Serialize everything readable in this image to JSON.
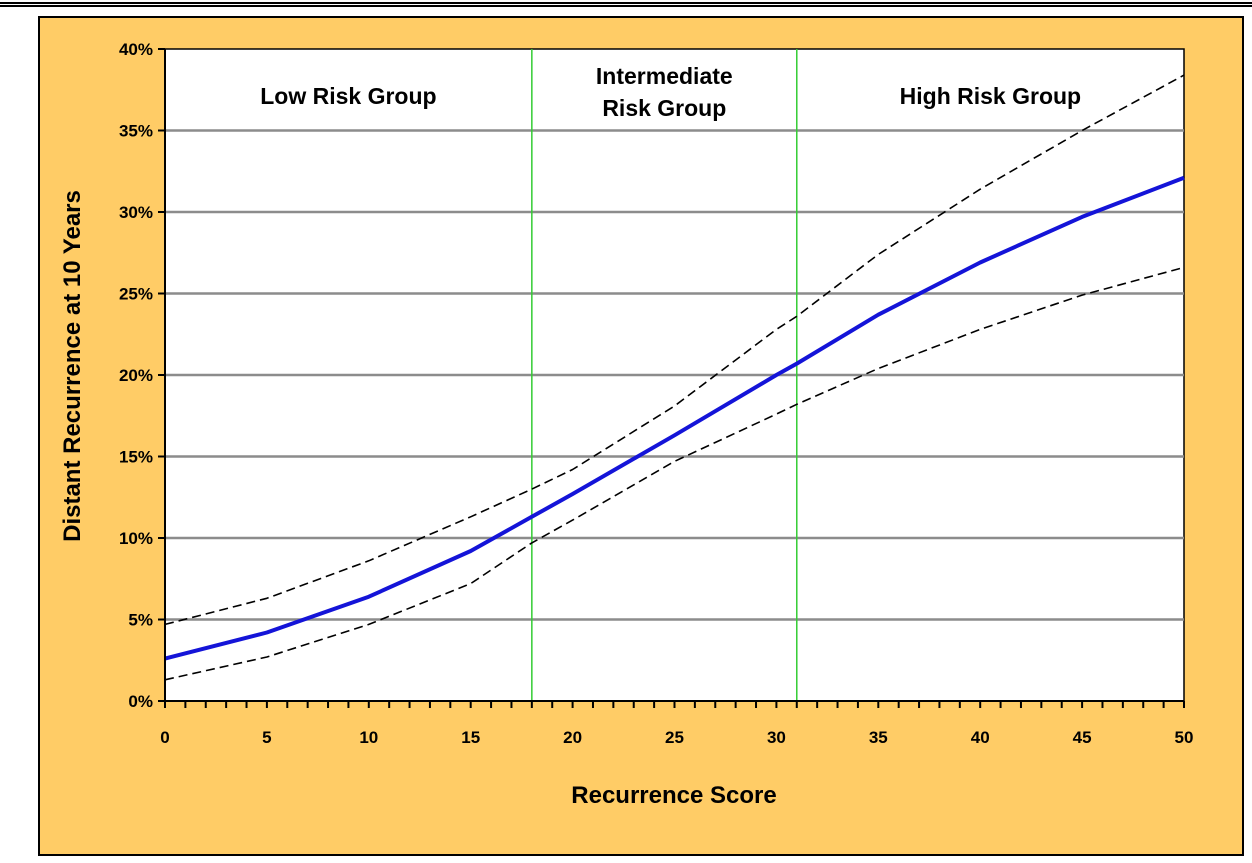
{
  "chart_data": {
    "type": "line",
    "title": "",
    "xlabel": "Recurrence Score",
    "ylabel": "Distant Recurrence at 10 Years",
    "xlim": [
      0,
      50
    ],
    "ylim": [
      0,
      40
    ],
    "x_ticks": [
      "0",
      "5",
      "10",
      "15",
      "20",
      "25",
      "30",
      "35",
      "40",
      "45",
      "50"
    ],
    "y_ticks": [
      "0%",
      "5%",
      "10%",
      "15%",
      "20%",
      "25%",
      "30%",
      "35%",
      "40%"
    ],
    "grid": "horizontal",
    "risk_cutoffs": [
      18,
      31
    ],
    "risk_groups": [
      {
        "lines": [
          "Low Risk Group"
        ]
      },
      {
        "lines": [
          "Intermediate",
          "Risk Group"
        ]
      },
      {
        "lines": [
          "High Risk Group"
        ]
      }
    ],
    "x": [
      0,
      5,
      10,
      15,
      18,
      20,
      25,
      30,
      31,
      35,
      40,
      45,
      50
    ],
    "series": [
      {
        "values": [
          2.6,
          4.2,
          6.4,
          9.2,
          11.3,
          12.7,
          16.3,
          20.0,
          20.7,
          23.7,
          26.9,
          29.7,
          32.1
        ],
        "color": "#1414D8",
        "style": "solid"
      },
      {
        "values": [
          4.7,
          6.3,
          8.6,
          11.3,
          13.0,
          14.2,
          18.1,
          22.8,
          23.6,
          27.4,
          31.4,
          35.0,
          38.4
        ],
        "color": "#000000",
        "style": "dashed"
      },
      {
        "values": [
          1.3,
          2.7,
          4.7,
          7.2,
          9.7,
          11.1,
          14.7,
          17.6,
          18.2,
          20.4,
          22.8,
          24.9,
          26.6
        ],
        "color": "#000000",
        "style": "dashed"
      }
    ]
  }
}
